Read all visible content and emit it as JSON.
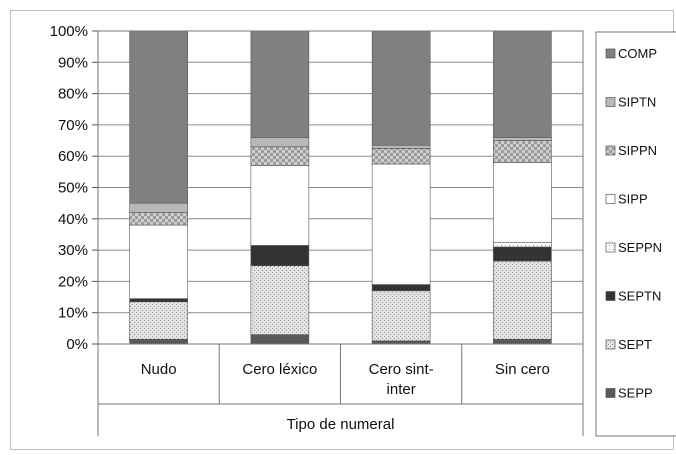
{
  "chart_data": {
    "type": "bar",
    "stacked": true,
    "percent": true,
    "categories": [
      "Nudo",
      "Cero léxico",
      "Cero sint-inter",
      "Sin cero"
    ],
    "category_lines": [
      [
        "Nudo"
      ],
      [
        "Cero léxico"
      ],
      [
        "Cero sint-",
        "inter"
      ],
      [
        "Sin cero"
      ]
    ],
    "xlabel": "Tipo de numeral",
    "ylabel": "",
    "ylim": [
      0,
      100
    ],
    "yticks": [
      "0%",
      "10%",
      "20%",
      "30%",
      "40%",
      "50%",
      "60%",
      "70%",
      "80%",
      "90%",
      "100%"
    ],
    "grid": true,
    "legend_position": "right",
    "series": [
      {
        "name": "SEPP",
        "values": [
          1.5,
          3,
          1,
          1.5
        ],
        "color": "#595959",
        "pattern": "solid"
      },
      {
        "name": "SEPT",
        "values": [
          12,
          22,
          16,
          25
        ],
        "color": "#d9d9d9",
        "pattern": "speckle"
      },
      {
        "name": "SEPTN",
        "values": [
          1,
          6.5,
          2,
          4.5
        ],
        "color": "#333333",
        "pattern": "solid"
      },
      {
        "name": "SEPPN",
        "values": [
          0,
          0,
          0,
          1.5
        ],
        "color": "#ffffff",
        "pattern": "dots"
      },
      {
        "name": "SIPP",
        "values": [
          23.5,
          25.5,
          38.5,
          25.5
        ],
        "color": "#ffffff",
        "pattern": "solid"
      },
      {
        "name": "SIPPN",
        "values": [
          4,
          6,
          5,
          7
        ],
        "color": "#a6a6a6",
        "pattern": "check"
      },
      {
        "name": "SIPTN",
        "values": [
          3,
          3,
          1,
          1
        ],
        "color": "#b8b8b8",
        "pattern": "solid"
      },
      {
        "name": "COMP",
        "values": [
          55,
          34,
          36.5,
          34
        ],
        "color": "#808080",
        "pattern": "solid"
      }
    ]
  }
}
